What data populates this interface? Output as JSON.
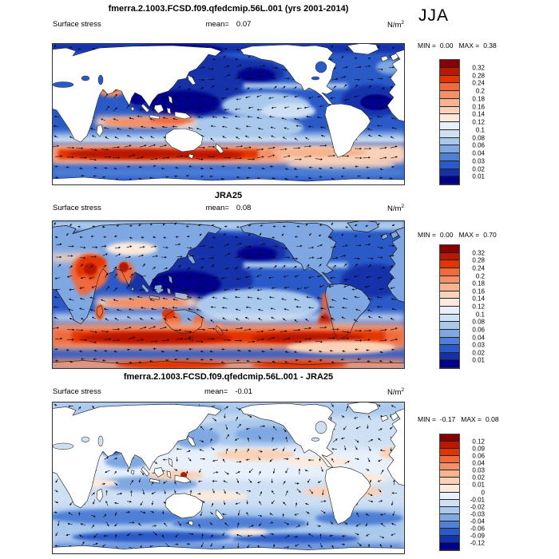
{
  "header": {
    "season": "JJA"
  },
  "colorbar": {
    "colors": [
      "#870000",
      "#b81800",
      "#e33400",
      "#ef6a3c",
      "#f39068",
      "#f7b48e",
      "#fad2b8",
      "#fdeadd",
      "#e8f1fb",
      "#cfe0f4",
      "#a8c8ec",
      "#7fa8e2",
      "#4f80d6",
      "#2a5ac8",
      "#1531aa",
      "#00008b"
    ],
    "labels_abs": [
      "0.32",
      "0.28",
      "0.24",
      "0.2",
      "0.18",
      "0.16",
      "0.14",
      "0.12",
      "0.1",
      "0.08",
      "0.06",
      "0.04",
      "0.03",
      "0.02",
      "0.01"
    ],
    "labels_diff": [
      "0.12",
      "0.09",
      "0.06",
      "0.04",
      "0.03",
      "0.02",
      "0.01",
      "0",
      "-0.01",
      "-0.02",
      "-0.03",
      "-0.04",
      "-0.06",
      "-0.09",
      "-0.12"
    ]
  },
  "panels": [
    {
      "title": "fmerra.2.1003.FCSD.f09.qfedcmip.56L.001 (yrs 2001-2014)",
      "variable": "Surface stress",
      "mean_label": "mean=",
      "mean_value": "0.07",
      "units_base": "N/m",
      "units_exp": "2",
      "min_label": "MIN =",
      "min_value": "0.00",
      "max_label": "MAX =",
      "max_value": "0.38"
    },
    {
      "title": "JRA25",
      "variable": "Surface stress",
      "mean_label": "mean=",
      "mean_value": "0.08",
      "units_base": "N/m",
      "units_exp": "2",
      "min_label": "MIN =",
      "min_value": "0.00",
      "max_label": "MAX =",
      "max_value": "0.70"
    },
    {
      "title": "fmerra.2.1003.FCSD.f09.qfedcmip.56L.001 - JRA25",
      "variable": "Surface stress",
      "mean_label": "mean=",
      "mean_value": "-0.01",
      "units_base": "N/m",
      "units_exp": "2",
      "min_label": "MIN =",
      "min_value": "-0.17",
      "max_label": "MAX =",
      "max_value": "0.08"
    }
  ],
  "chart_data": [
    {
      "type": "heatmap",
      "subtype": "global_map_with_vectors",
      "projection": "cylindrical, 0-360E",
      "title": "fmerra.2.1003.FCSD.f09.qfedcmip.56L.001 (yrs 2001-2014)",
      "variable": "Surface stress",
      "season": "JJA",
      "units": "N/m^2",
      "mean": 0.07,
      "min": 0.0,
      "max": 0.38,
      "contour_levels": [
        0.01,
        0.02,
        0.03,
        0.04,
        0.06,
        0.08,
        0.1,
        0.12,
        0.14,
        0.16,
        0.18,
        0.2,
        0.24,
        0.28,
        0.32
      ],
      "palette": "blue (low) to red (high), 16 classes",
      "legend_position": "right",
      "notable_features": [
        "dark blue low-stress tropics and NE Pacific",
        "strong red Southern Ocean westerly band",
        "red Somali jet in Arabian Sea",
        "vector arrows over ocean, land masked white"
      ]
    },
    {
      "type": "heatmap",
      "subtype": "global_map_with_vectors",
      "projection": "cylindrical, 0-360E",
      "title": "JRA25",
      "variable": "Surface stress",
      "season": "JJA",
      "units": "N/m^2",
      "mean": 0.08,
      "min": 0.0,
      "max": 0.7,
      "contour_levels": [
        0.01,
        0.02,
        0.03,
        0.04,
        0.06,
        0.08,
        0.1,
        0.12,
        0.14,
        0.16,
        0.18,
        0.2,
        0.24,
        0.28,
        0.32
      ],
      "palette": "blue (low) to red (high), 16 classes",
      "legend_position": "right",
      "notable_features": [
        "stress shown over land too",
        "red East Africa/Arabia/India monsoon regions",
        "broad red Southern Ocean band and Antarctic coast"
      ]
    },
    {
      "type": "heatmap",
      "subtype": "global_difference_map_with_vectors",
      "projection": "cylindrical, 0-360E",
      "title": "fmerra.2.1003.FCSD.f09.qfedcmip.56L.001 - JRA25",
      "variable": "Surface stress",
      "season": "JJA",
      "units": "N/m^2",
      "mean": -0.01,
      "min": -0.17,
      "max": 0.08,
      "contour_levels": [
        -0.12,
        -0.09,
        -0.06,
        -0.04,
        -0.03,
        -0.02,
        -0.01,
        0,
        0.01,
        0.02,
        0.03,
        0.04,
        0.06,
        0.09,
        0.12
      ],
      "palette": "blue (negative) to red (positive), 16 classes",
      "legend_position": "right",
      "notable_features": [
        "mostly pale/medium blue (model weaker)",
        "dark blue Southern Ocean bands",
        "scattered pale red patches in tropics"
      ]
    }
  ]
}
